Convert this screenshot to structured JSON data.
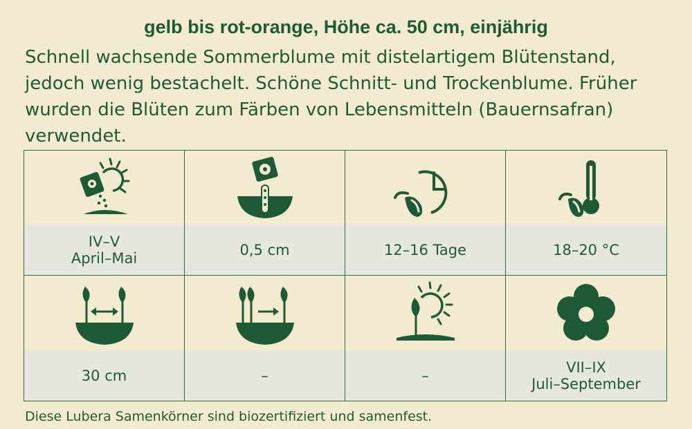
{
  "subtitle": "gelb bis rot-orange, Höhe ca. 50 cm, einjährig",
  "description": [
    "Schnell wachsende Sommerblume mit distelartigem Blütenstand,",
    "jedoch wenig bestachelt. Schöne Schnitt- und Trockenblume. Früher",
    "wurden die Blüten zum Färben von Lebensmitteln (Bauernsafran)",
    "verwendet."
  ],
  "cells": [
    {
      "icon": "sowing-seed-packet-sun-icon",
      "line1": "IV–V",
      "line2": "April–Mai"
    },
    {
      "icon": "sowing-depth-icon",
      "line1": "0,5 cm",
      "line2": ""
    },
    {
      "icon": "germination-time-clock-icon",
      "line1": "12–16 Tage",
      "line2": ""
    },
    {
      "icon": "germination-temperature-thermometer-icon",
      "line1": "18–20 °C",
      "line2": ""
    },
    {
      "icon": "plant-spacing-icon",
      "line1": "30 cm",
      "line2": ""
    },
    {
      "icon": "row-spacing-icon",
      "line1": "–",
      "line2": ""
    },
    {
      "icon": "sun-location-icon",
      "line1": "–",
      "line2": ""
    },
    {
      "icon": "flowering-time-flower-icon",
      "line1": "VII–IX",
      "line2": "Juli–September"
    }
  ],
  "footer": "Diese Lubera Samenkörner sind biozertifiziert und samenfest.",
  "colors": {
    "primary": "#1f5a36",
    "background": "#f3ebd0",
    "label_bg": "#e6e7df"
  }
}
